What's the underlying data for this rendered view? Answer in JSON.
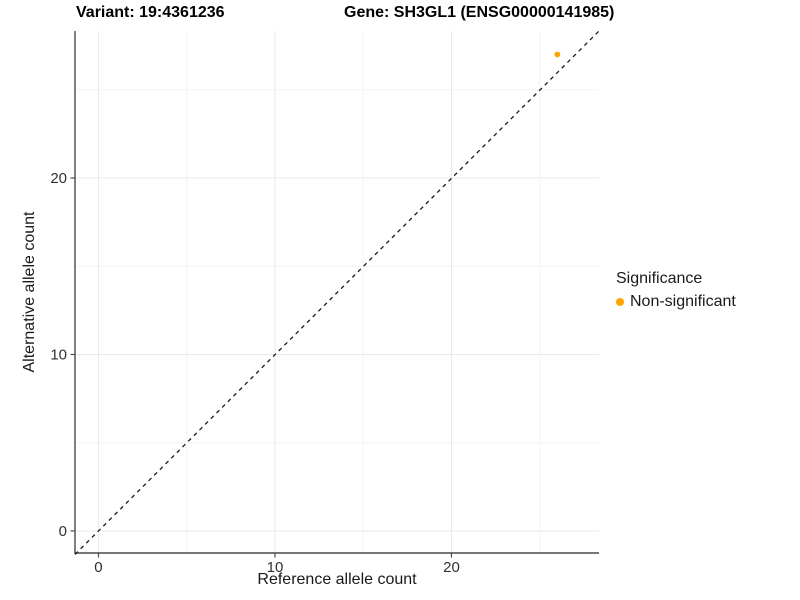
{
  "titles": {
    "variant": "Variant: 19:4361236",
    "gene": "Gene: SH3GL1 (ENSG00000141985)"
  },
  "legend": {
    "title": "Significance",
    "items": [
      {
        "label": "Non-significant",
        "color": "#FFA500"
      }
    ]
  },
  "colors": {
    "point": "#FFA500",
    "grid_major": "#e9e9e9",
    "grid_minor": "#f4f4f4",
    "axis_line": "#4a4a4a",
    "tick_label": "#303030",
    "identity_line": "#1a1a1a"
  },
  "chart_data": {
    "type": "scatter",
    "title": "Variant: 19:4361236  |  Gene: SH3GL1 (ENSG00000141985)",
    "points": [
      {
        "x": 26,
        "y": 27,
        "series": "Non-significant",
        "color": "#FFA500"
      }
    ],
    "identity_line": {
      "style": "dashed",
      "from": [
        -1.33,
        -1.33
      ],
      "to": [
        28.36,
        28.33
      ]
    },
    "x": {
      "label": "Reference allele count",
      "range": [
        -1.33,
        28.36
      ],
      "major_ticks": [
        0,
        10,
        20
      ],
      "minor_ticks": [
        5,
        15,
        25
      ]
    },
    "y": {
      "label": "Alternative allele count",
      "range": [
        -1.25,
        28.33
      ],
      "major_ticks": [
        0,
        10,
        20
      ],
      "minor_ticks": [
        5,
        15,
        25
      ]
    },
    "grid": true,
    "legend_position": "right"
  }
}
